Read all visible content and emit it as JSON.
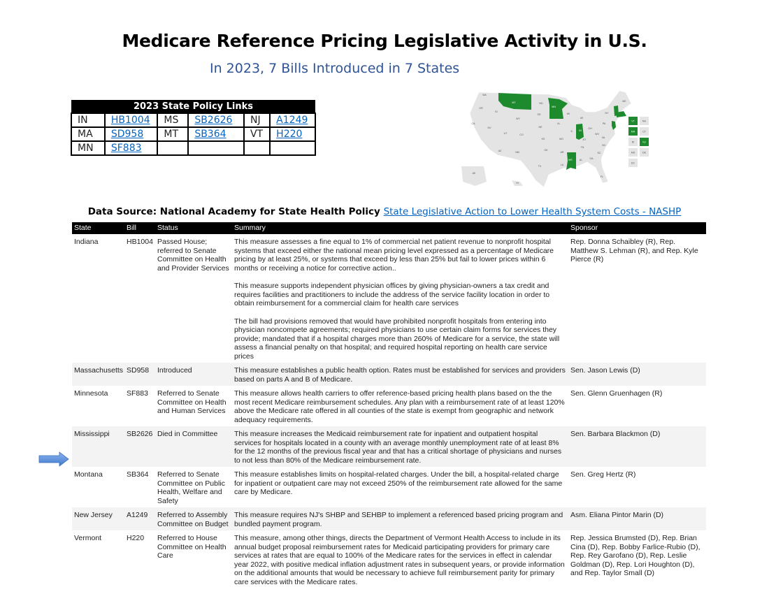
{
  "title": "Medicare Reference Pricing Legislative Activity in U.S.",
  "subtitle": "In 2023, 7 Bills Introduced in 7 States",
  "links_table": {
    "header": "2023 State Policy Links",
    "rows": [
      [
        {
          "state": "IN",
          "bill": "HB1004"
        },
        {
          "state": "MS",
          "bill": "SB2626"
        },
        {
          "state": "NJ",
          "bill": "A1249"
        }
      ],
      [
        {
          "state": "MA",
          "bill": "SD958"
        },
        {
          "state": "MT",
          "bill": "SB364"
        },
        {
          "state": "VT",
          "bill": "H220"
        }
      ],
      [
        {
          "state": "MN",
          "bill": "SF883"
        },
        {
          "state": "",
          "bill": ""
        },
        {
          "state": "",
          "bill": ""
        }
      ]
    ]
  },
  "map": {
    "highlight_color": "#1e8a2e",
    "base_color": "#e4e4e4",
    "highlighted": [
      "MT",
      "MN",
      "IN",
      "MS",
      "VT",
      "MA",
      "NJ"
    ],
    "labels": [
      "WA",
      "OR",
      "ID",
      "CA",
      "NV",
      "UT",
      "AZ",
      "MT",
      "WY",
      "CO",
      "NM",
      "ND",
      "SD",
      "NE",
      "KS",
      "OK",
      "TX",
      "MN",
      "IA",
      "MO",
      "AR",
      "LA",
      "WI",
      "IL",
      "MS",
      "MI",
      "IN",
      "KY",
      "TN",
      "AL",
      "OH",
      "GA",
      "FL",
      "WV",
      "VA",
      "NC",
      "SC",
      "PA",
      "NY",
      "ME",
      "AK",
      "HI"
    ],
    "tiles": [
      "VT",
      "NH",
      "MA",
      "CT",
      "RI",
      "NJ",
      "MD",
      "DE",
      "DC"
    ]
  },
  "source": {
    "label": "Data Source: National Academy for State Health Policy",
    "link": "State Legislative Action to Lower Health System Costs - NASHP"
  },
  "main_table": {
    "columns": [
      "State",
      "Bill",
      "Status",
      "Summary",
      "Sponsor"
    ],
    "rows": [
      {
        "state": "Indiana",
        "bill": "HB1004",
        "status": "Passed House; referred to Senate Committee on Health and Provider Services",
        "summary": [
          "This measure assesses a fine equal to 1% of commercial net patient revenue to nonprofit hospital systems that exceed either the national mean pricing level expressed as a percentage of Medicare pricing by at least 25%, or systems that exceed by less than 25% but fail to lower prices within 6 months or receiving a notice for corrective action..",
          "This measure supports independent physician offices by giving physician-owners a tax credit and requires facilities and practitioners to include the address of the service facility location in order to obtain reimbursement for a commercial claim for health care services",
          "The bill had provisions removed that would have prohibited nonprofit hospitals from entering into physician noncompete agreements; required physicians to use certain claim forms for services they provide; mandated that if a hospital charges more than 260% of Medicare for a service, the state will assess a financial penalty on that hospital; and required hospital reporting on health care service prices"
        ],
        "sponsor": "Rep. Donna Schaibley (R), Rep. Matthew S. Lehman (R), and Rep. Kyle Pierce (R)"
      },
      {
        "state": "Massachusetts",
        "bill": "SD958",
        "status": "Introduced",
        "summary": [
          "This measure establishes a public health option. Rates must be established for services and providers based on parts A and B of Medicare."
        ],
        "sponsor": "Sen. Jason Lewis (D)"
      },
      {
        "state": "Minnesota",
        "bill": "SF883",
        "status": "Referred to Senate Committee on Health and Human Services",
        "summary": [
          "This measure allows health carriers to offer reference-based pricing health plans based on the the most recent Medicare reimbursement schedules. Any plan with a reimbursement rate of at least 120% above the Medicare rate offered in all counties of the state is exempt from geographic and network adequacy requirements."
        ],
        "sponsor": "Sen. Glenn Gruenhagen (R)"
      },
      {
        "state": "Mississippi",
        "bill": "SB2626",
        "status": "Died in Committee",
        "summary": [
          "This measure increases the Medicaid reimbursement rate for inpatient and outpatient hospital services for hospitals located in a county with an average monthly unemployment rate of at least 8% for the 12 months of the previous fiscal year and that has a critical shortage of physicians and nurses to not less than 80% of the Medicare reimbursement rate."
        ],
        "sponsor": "Sen. Barbara Blackmon (D)"
      },
      {
        "state": "Montana",
        "bill": "SB364",
        "status": "Referred to Senate Committee on Public Health, Welfare and Safety",
        "summary": [
          "This measure establishes limits on hospital-related charges. Under the bill, a hospital-related charge for inpatient or outpatient care may not exceed 250% of the reimbursement rate allowed for the same care by Medicare."
        ],
        "sponsor": "Sen. Greg Hertz (R)"
      },
      {
        "state": "New Jersey",
        "bill": "A1249",
        "status": "Referred to Assembly Committee on Budget",
        "summary": [
          "This measure requires NJ's SHBP and SEHBP to implement a referenced based pricing program and bundled payment program."
        ],
        "sponsor": "Asm. Eliana Pintor Marin (D)"
      },
      {
        "state": "Vermont",
        "bill": "H220",
        "status": "Referred to House Committee on Health Care",
        "summary": [
          "This measure, among other things, directs the Department of Vermont Health Access to include in its annual budget proposal reimbursement rates for Medicaid participating providers for primary care services at rates that are equal to 100% of the Medicare rates for the services in effect in calendar year 2022, with positive medical inflation adjustment rates in subsequent years, or provide information on the additional amounts that would be necessary to achieve full reimbursement parity for primary care services with the Medicare rates."
        ],
        "sponsor": "Rep. Jessica Brumsted (D), Rep. Brian Cina (D), Rep. Bobby Farlice-Rubio (D), Rep. Rey Garofano (D), Rep. Leslie Goldman (D), Rep. Lori Houghton (D), and Rep. Taylor Small (D)"
      }
    ]
  },
  "pointer": {
    "icon": "right-arrow-icon",
    "color": "#4a86d8",
    "row": "Montana"
  }
}
